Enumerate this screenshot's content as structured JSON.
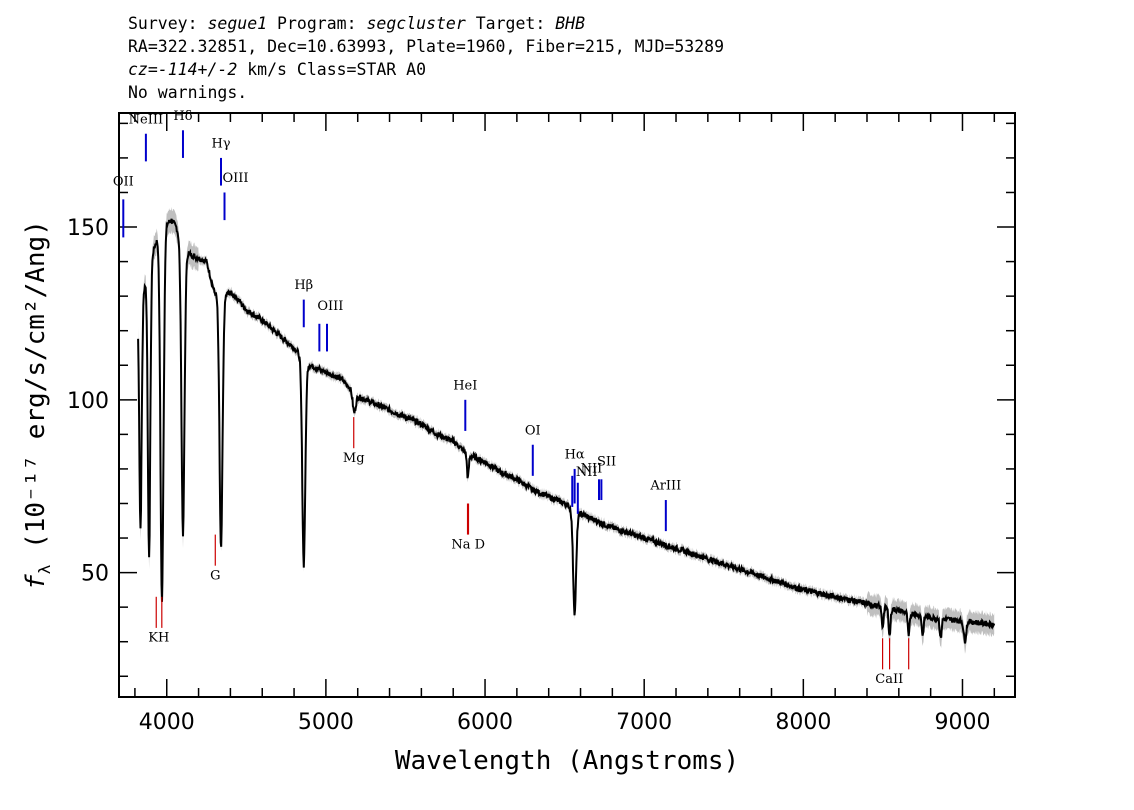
{
  "header": {
    "survey_key": "Survey:",
    "survey": "segue1",
    "program_key": "Program:",
    "program": "segcluster",
    "target_key": "Target:",
    "target": "BHB",
    "line2": "RA=322.32851, Dec=10.63993, Plate=1960, Fiber=215, MJD=53289",
    "cz": "cz=-114+/-2",
    "line3_rest": "km/s Class=STAR A0",
    "line4": "No warnings."
  },
  "chart_data": {
    "type": "line",
    "xlabel": "Wavelength (Angstroms)",
    "ylabel": "fλ (10⁻¹⁷ erg/s/cm²/Ang)",
    "xlim": [
      3700,
      9330
    ],
    "ylim": [
      14,
      183
    ],
    "x_ticks": [
      4000,
      5000,
      6000,
      7000,
      8000,
      9000
    ],
    "y_ticks": [
      50,
      100,
      150
    ],
    "x_minor_step": 200,
    "y_minor_step": 10,
    "colors": {
      "flux": "#000000",
      "error_band": "#b8b8b8",
      "emission": "#0000cc",
      "absorption": "#cc0000"
    },
    "continuum": [
      [
        3820,
        128
      ],
      [
        3850,
        131
      ],
      [
        3900,
        141
      ],
      [
        3950,
        148
      ],
      [
        4000,
        151
      ],
      [
        4030,
        152
      ],
      [
        4060,
        150
      ],
      [
        4100,
        144
      ],
      [
        4150,
        142
      ],
      [
        4250,
        140
      ],
      [
        4300,
        131
      ],
      [
        4350,
        130
      ],
      [
        4400,
        131
      ],
      [
        4450,
        129
      ],
      [
        4500,
        126
      ],
      [
        4600,
        123
      ],
      [
        4700,
        119
      ],
      [
        4800,
        115
      ],
      [
        4900,
        110
      ],
      [
        5000,
        108
      ],
      [
        5100,
        106
      ],
      [
        5200,
        101
      ],
      [
        5300,
        99
      ],
      [
        5400,
        97
      ],
      [
        5500,
        95
      ],
      [
        5600,
        93
      ],
      [
        5700,
        90
      ],
      [
        5800,
        88
      ],
      [
        5900,
        84
      ],
      [
        6000,
        82
      ],
      [
        6100,
        79
      ],
      [
        6200,
        77
      ],
      [
        6300,
        74
      ],
      [
        6400,
        72
      ],
      [
        6500,
        70
      ],
      [
        6600,
        67
      ],
      [
        6700,
        65
      ],
      [
        6800,
        63
      ],
      [
        7000,
        60
      ],
      [
        7200,
        57
      ],
      [
        7400,
        54
      ],
      [
        7600,
        51
      ],
      [
        7800,
        48
      ],
      [
        8000,
        45
      ],
      [
        8200,
        43
      ],
      [
        8400,
        41
      ],
      [
        8600,
        39
      ],
      [
        8800,
        37
      ],
      [
        9000,
        36
      ],
      [
        9200,
        35
      ]
    ],
    "absorption_features": [
      {
        "name": "H8",
        "center": 3889,
        "depth": 74,
        "width": 8
      },
      {
        "name": "H-epsilon",
        "center": 3970,
        "depth": 94,
        "width": 10
      },
      {
        "name": "H-zeta",
        "center": 3835,
        "depth": 58,
        "width": 8
      },
      {
        "name": "H-delta",
        "center": 4102,
        "depth": 72,
        "width": 10
      },
      {
        "name": "H-gamma",
        "center": 4341,
        "depth": 64,
        "width": 10
      },
      {
        "name": "H-beta",
        "center": 4861,
        "depth": 52,
        "width": 10
      },
      {
        "name": "Mg",
        "center": 5178,
        "depth": 5,
        "width": 10
      },
      {
        "name": "Na D",
        "center": 5892,
        "depth": 6,
        "width": 6
      },
      {
        "name": "H-alpha",
        "center": 6563,
        "depth": 26,
        "width": 10
      },
      {
        "name": "CaII-1",
        "center": 8498,
        "depth": 5,
        "width": 6
      },
      {
        "name": "CaII-2",
        "center": 8542,
        "depth": 7,
        "width": 6
      },
      {
        "name": "CaII-3",
        "center": 8662,
        "depth": 6,
        "width": 6
      },
      {
        "name": "Paschen-1",
        "center": 8750,
        "depth": 5,
        "width": 6
      },
      {
        "name": "Paschen-2",
        "center": 8863,
        "depth": 5,
        "width": 6
      },
      {
        "name": "Paschen-3",
        "center": 9015,
        "depth": 5,
        "width": 8
      }
    ],
    "emission_lines": [
      {
        "label": "OII",
        "x": 3727,
        "y0": 158,
        "y1": 147,
        "ly": 162,
        "anchor": "middle"
      },
      {
        "label": "NeIII",
        "x": 3869,
        "y0": 177,
        "y1": 169,
        "ly": 180,
        "anchor": "middle"
      },
      {
        "label": "Hδ",
        "x": 4102,
        "y0": 178,
        "y1": 170,
        "ly": 181,
        "anchor": "middle"
      },
      {
        "label": "Hγ",
        "x": 4341,
        "y0": 170,
        "y1": 162,
        "ly": 173,
        "anchor": "middle"
      },
      {
        "label": "OIII",
        "x": 4363,
        "y0": 160,
        "y1": 152,
        "ly": 163,
        "anchor": "start"
      },
      {
        "label": "Hβ",
        "x": 4861,
        "y0": 129,
        "y1": 121,
        "ly": 132,
        "anchor": "middle"
      },
      {
        "label": "OIII",
        "x": 4959,
        "y0": 122,
        "y1": 114,
        "ly": 126,
        "anchor": "start"
      },
      {
        "label": "",
        "x": 5007,
        "y0": 122,
        "y1": 114,
        "ly": 0,
        "anchor": "middle"
      },
      {
        "label": "HeI",
        "x": 5876,
        "y0": 100,
        "y1": 91,
        "ly": 103,
        "anchor": "middle"
      },
      {
        "label": "OI",
        "x": 6300,
        "y0": 87,
        "y1": 78,
        "ly": 90,
        "anchor": "middle"
      },
      {
        "label": "NII",
        "x": 6548,
        "y0": 78,
        "y1": 69,
        "ly": 79,
        "anchor": "end"
      },
      {
        "label": "Hα",
        "x": 6563,
        "y0": 80,
        "y1": 70,
        "ly": 83,
        "anchor": "middle"
      },
      {
        "label": "NII",
        "x": 6583,
        "y0": 76,
        "y1": 67,
        "ly": 78,
        "anchor": "start"
      },
      {
        "label": "SII",
        "x": 6716,
        "y0": 77,
        "y1": 71,
        "ly": 81,
        "anchor": "start"
      },
      {
        "label": "",
        "x": 6731,
        "y0": 77,
        "y1": 71,
        "ly": 0,
        "anchor": "middle"
      },
      {
        "label": "ArIII",
        "x": 7136,
        "y0": 71,
        "y1": 62,
        "ly": 74,
        "anchor": "middle"
      }
    ],
    "absorption_lines": [
      {
        "label": "KH",
        "x": 3950,
        "x_lines": [
          3934,
          3969
        ],
        "y0": 43,
        "y1": 34,
        "ly": 30,
        "anchor": "middle"
      },
      {
        "label": "G",
        "x": 4305,
        "x_lines": [
          4305
        ],
        "y0": 61,
        "y1": 52,
        "ly": 48,
        "anchor": "middle"
      },
      {
        "label": "Mg",
        "x": 5175,
        "x_lines": [
          5175
        ],
        "y0": 95,
        "y1": 86,
        "ly": 82,
        "anchor": "middle"
      },
      {
        "label": "Na D",
        "x": 5894,
        "x_lines": [
          5890,
          5896
        ],
        "y0": 70,
        "y1": 61,
        "ly": 57,
        "anchor": "middle"
      },
      {
        "label": "CaII",
        "x": 8540,
        "x_lines": [
          8498,
          8542,
          8662
        ],
        "y0": 31,
        "y1": 22,
        "ly": 18,
        "anchor": "middle"
      }
    ]
  }
}
